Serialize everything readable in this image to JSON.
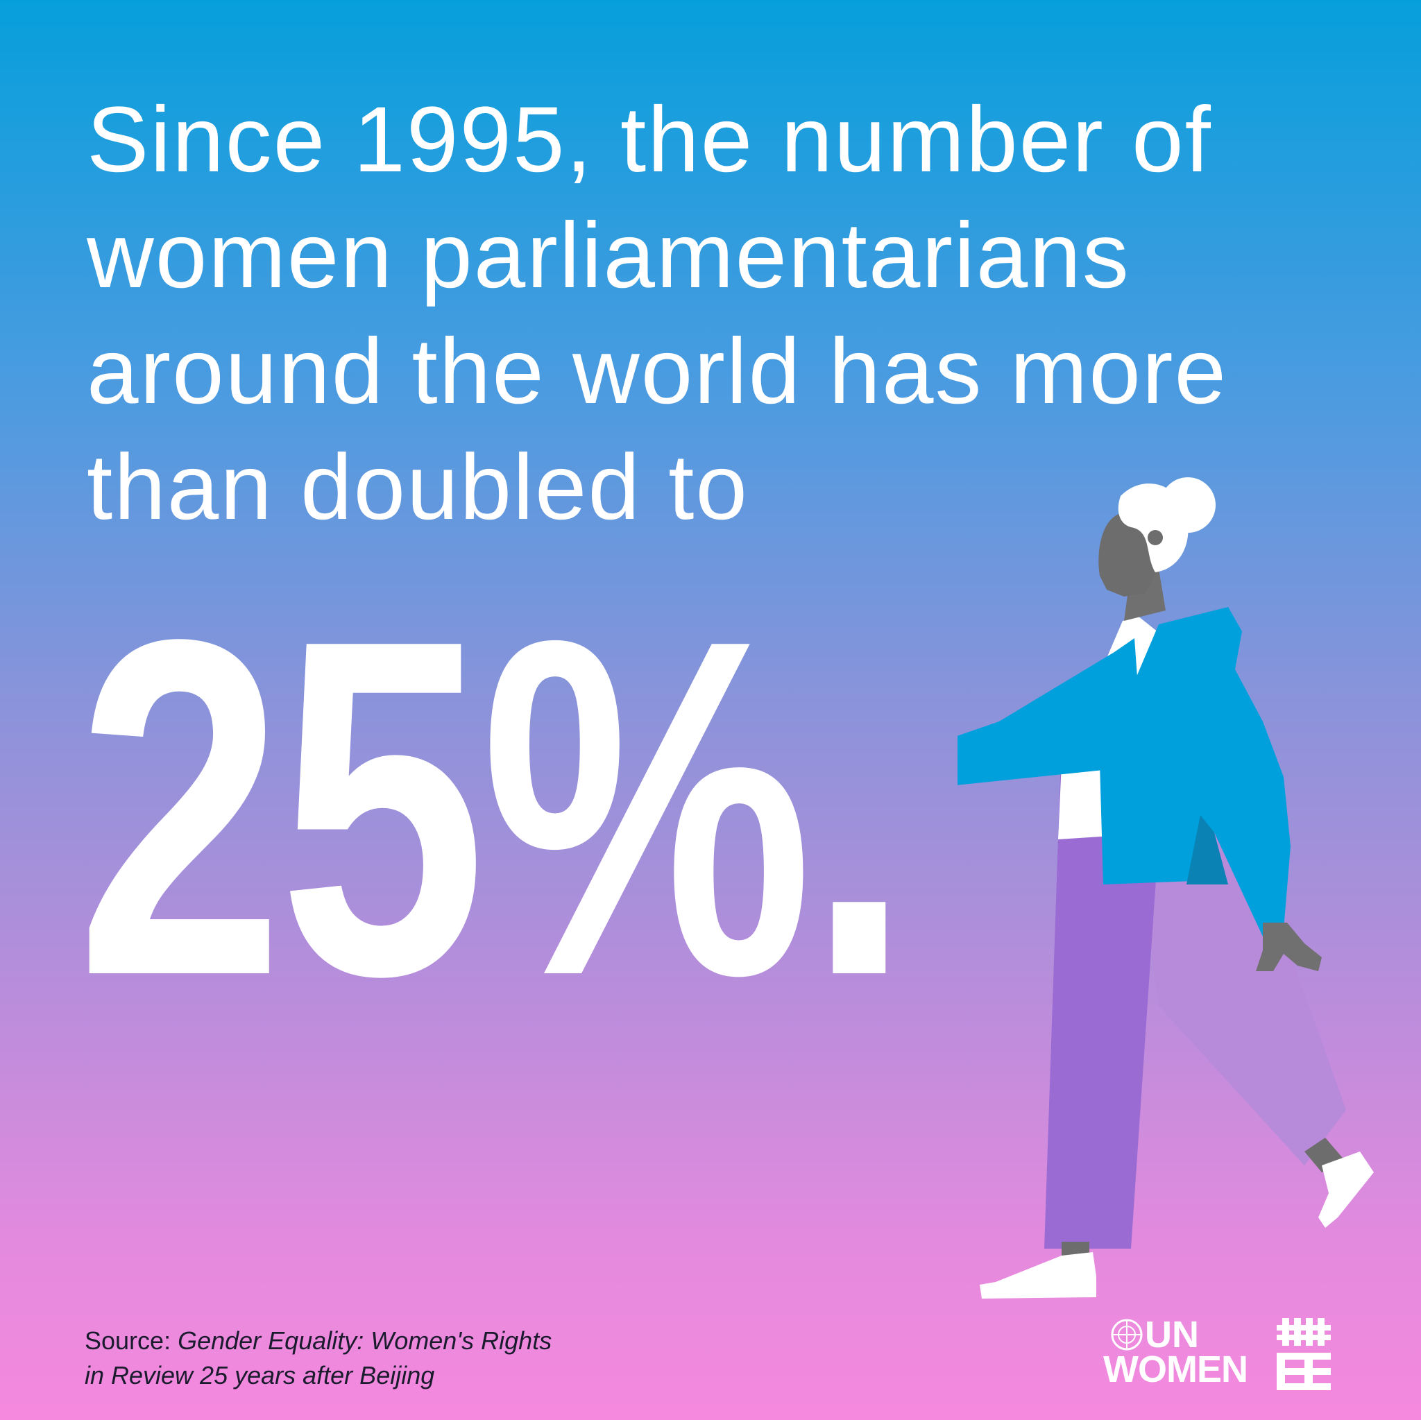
{
  "headline": {
    "lines": [
      "Since 1995, the number of",
      "women parliamentarians",
      "around the world has more",
      "than doubled to"
    ]
  },
  "statistic": {
    "value": "25%."
  },
  "source": {
    "prefix": "Source:",
    "title_line1": "Gender Equality: Women's Rights",
    "title_line2": "in Review 25 years after Beijing"
  },
  "logo": {
    "line1": "UN",
    "line2": "WOMEN"
  },
  "illustration": {
    "subject": "woman-walking-illustration"
  },
  "colors": {
    "gradient_top": "#069fdc",
    "gradient_bottom": "#f589de",
    "text": "#ffffff",
    "jacket": "#00a0dc",
    "trousers": "#9a6bd3",
    "skin": "#707070"
  }
}
